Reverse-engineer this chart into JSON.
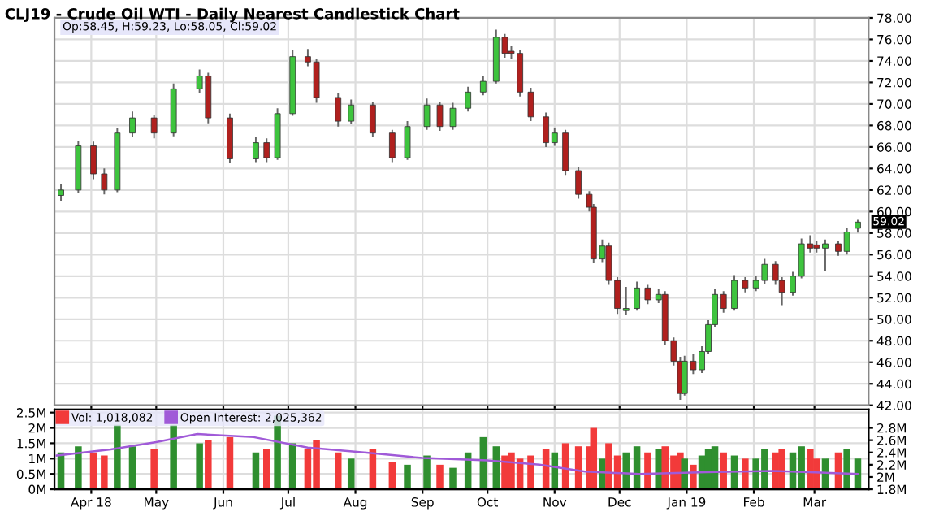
{
  "chart_data": [
    {
      "type": "candlestick",
      "title": "CLJ19 - Crude Oil WTI - Daily Nearest Candlestick Chart",
      "x": [
        "2018-03-18",
        "2018-03-26",
        "2018-04-02",
        "2018-04-07",
        "2018-04-13",
        "2018-04-20",
        "2018-04-30",
        "2018-05-09",
        "2018-05-21",
        "2018-05-25",
        "2018-06-04",
        "2018-06-16",
        "2018-06-21",
        "2018-06-26",
        "2018-07-03",
        "2018-07-10",
        "2018-07-14",
        "2018-07-24",
        "2018-07-30",
        "2018-08-09",
        "2018-08-18",
        "2018-08-25",
        "2018-09-03",
        "2018-09-09",
        "2018-09-15",
        "2018-09-22",
        "2018-09-29",
        "2018-10-05",
        "2018-10-09",
        "2018-10-12",
        "2018-10-16",
        "2018-10-21",
        "2018-10-28",
        "2018-11-01",
        "2018-11-06",
        "2018-11-12",
        "2018-11-17",
        "2018-11-19",
        "2018-11-23",
        "2018-11-26",
        "2018-11-30",
        "2018-12-04",
        "2018-12-09",
        "2018-12-14",
        "2018-12-19",
        "2018-12-22",
        "2018-12-26",
        "2018-12-29",
        "2018-12-31",
        "2019-01-04",
        "2019-01-08",
        "2019-01-11",
        "2019-01-14",
        "2019-01-18",
        "2019-01-23",
        "2019-01-28",
        "2019-02-02",
        "2019-02-06",
        "2019-02-11",
        "2019-02-14",
        "2019-02-19",
        "2019-02-23",
        "2019-02-27",
        "2019-03-02",
        "2019-03-06",
        "2019-03-12",
        "2019-03-16",
        "2019-03-21"
      ],
      "ohlc": [
        [
          61.5,
          62.6,
          61.0,
          62.0
        ],
        [
          62.0,
          66.6,
          61.7,
          66.1
        ],
        [
          66.1,
          66.5,
          63.0,
          63.5
        ],
        [
          63.5,
          64.0,
          61.6,
          62.0
        ],
        [
          62.0,
          67.8,
          61.8,
          67.3
        ],
        [
          67.3,
          69.3,
          66.9,
          68.7
        ],
        [
          68.7,
          69.0,
          66.8,
          67.3
        ],
        [
          67.3,
          71.9,
          67.0,
          71.4
        ],
        [
          71.4,
          73.2,
          71.0,
          72.6
        ],
        [
          72.6,
          72.9,
          68.2,
          68.7
        ],
        [
          68.7,
          69.1,
          64.5,
          64.9
        ],
        [
          64.9,
          66.9,
          64.6,
          66.4
        ],
        [
          66.4,
          66.8,
          64.6,
          65.0
        ],
        [
          65.0,
          69.6,
          64.8,
          69.1
        ],
        [
          69.1,
          75.0,
          68.9,
          74.4
        ],
        [
          74.4,
          75.1,
          73.5,
          73.9
        ],
        [
          73.9,
          74.2,
          70.1,
          70.6
        ],
        [
          70.6,
          71.0,
          67.9,
          68.4
        ],
        [
          68.4,
          70.4,
          68.1,
          69.9
        ],
        [
          69.9,
          70.2,
          66.9,
          67.3
        ],
        [
          67.3,
          67.6,
          64.6,
          65.0
        ],
        [
          65.0,
          68.4,
          64.8,
          67.9
        ],
        [
          67.9,
          70.5,
          67.6,
          69.9
        ],
        [
          69.9,
          70.2,
          67.5,
          67.9
        ],
        [
          67.9,
          70.1,
          67.6,
          69.6
        ],
        [
          69.6,
          71.6,
          69.3,
          71.1
        ],
        [
          71.1,
          72.6,
          70.8,
          72.1
        ],
        [
          72.1,
          76.9,
          71.9,
          76.2
        ],
        [
          76.2,
          76.5,
          74.3,
          74.7
        ],
        [
          74.9,
          75.4,
          74.2,
          74.7
        ],
        [
          74.7,
          75.0,
          70.7,
          71.1
        ],
        [
          71.1,
          71.5,
          68.4,
          68.8
        ],
        [
          68.8,
          69.2,
          66.0,
          66.4
        ],
        [
          66.4,
          67.8,
          66.1,
          67.3
        ],
        [
          67.3,
          67.6,
          63.4,
          63.8
        ],
        [
          63.8,
          64.1,
          61.2,
          61.6
        ],
        [
          61.6,
          61.9,
          60.0,
          60.4
        ],
        [
          60.4,
          60.7,
          55.2,
          55.6
        ],
        [
          55.6,
          57.4,
          55.3,
          56.8
        ],
        [
          56.8,
          57.1,
          53.2,
          53.6
        ],
        [
          53.6,
          53.9,
          50.5,
          51.0
        ],
        [
          50.8,
          53.0,
          50.4,
          51.0
        ],
        [
          51.0,
          53.5,
          50.8,
          52.9
        ],
        [
          52.9,
          53.2,
          51.4,
          51.8
        ],
        [
          51.8,
          52.8,
          51.5,
          52.3
        ],
        [
          52.3,
          52.6,
          47.6,
          48.0
        ],
        [
          48.0,
          48.3,
          45.7,
          46.1
        ],
        [
          46.1,
          46.5,
          42.5,
          43.1
        ],
        [
          43.1,
          46.6,
          42.9,
          46.1
        ],
        [
          46.1,
          46.8,
          44.9,
          45.3
        ],
        [
          45.3,
          47.5,
          45.0,
          47.0
        ],
        [
          47.0,
          49.9,
          46.8,
          49.5
        ],
        [
          49.5,
          52.8,
          49.3,
          52.3
        ],
        [
          52.3,
          52.6,
          50.6,
          51.0
        ],
        [
          51.0,
          54.1,
          50.8,
          53.6
        ],
        [
          53.6,
          53.9,
          52.5,
          52.9
        ],
        [
          52.9,
          54.0,
          52.6,
          53.6
        ],
        [
          53.6,
          55.6,
          53.3,
          55.1
        ],
        [
          55.1,
          55.4,
          53.2,
          53.6
        ],
        [
          53.6,
          53.9,
          51.3,
          52.5
        ],
        [
          52.5,
          54.4,
          52.2,
          54.0
        ],
        [
          54.0,
          57.5,
          53.8,
          57.0
        ],
        [
          57.0,
          57.8,
          56.2,
          56.6
        ],
        [
          56.9,
          57.3,
          56.2,
          56.6
        ],
        [
          56.6,
          57.4,
          54.5,
          57.0
        ],
        [
          57.0,
          57.3,
          55.9,
          56.3
        ],
        [
          56.3,
          58.5,
          56.0,
          58.1
        ],
        [
          58.45,
          59.23,
          58.05,
          59.02
        ]
      ],
      "colors": [
        "#3ec43e",
        "#3ec43e",
        "#b0201e",
        "#b0201e",
        "#3ec43e",
        "#3ec43e",
        "#b0201e",
        "#3ec43e",
        "#3ec43e",
        "#b0201e",
        "#b0201e",
        "#3ec43e",
        "#b0201e",
        "#3ec43e",
        "#3ec43e",
        "#b0201e",
        "#b0201e",
        "#b0201e",
        "#3ec43e",
        "#b0201e",
        "#b0201e",
        "#3ec43e",
        "#3ec43e",
        "#b0201e",
        "#3ec43e",
        "#3ec43e",
        "#3ec43e",
        "#3ec43e",
        "#b0201e",
        "#b0201e",
        "#b0201e",
        "#b0201e",
        "#b0201e",
        "#3ec43e",
        "#b0201e",
        "#b0201e",
        "#b0201e",
        "#b0201e",
        "#3ec43e",
        "#b0201e",
        "#b0201e",
        "#3ec43e",
        "#3ec43e",
        "#b0201e",
        "#3ec43e",
        "#b0201e",
        "#b0201e",
        "#b0201e",
        "#3ec43e",
        "#b0201e",
        "#3ec43e",
        "#3ec43e",
        "#3ec43e",
        "#b0201e",
        "#3ec43e",
        "#b0201e",
        "#3ec43e",
        "#3ec43e",
        "#b0201e",
        "#b0201e",
        "#3ec43e",
        "#3ec43e",
        "#b0201e",
        "#b0201e",
        "#3ec43e",
        "#b0201e",
        "#3ec43e",
        "#3ec43e"
      ],
      "xlim": [
        "2018-03-15",
        "2019-03-26"
      ],
      "xticks": [
        {
          "value": "2018-04-01",
          "label": null
        },
        {
          "value": "2018-05-01",
          "label": null
        },
        {
          "value": "2018-06-01",
          "label": null
        },
        {
          "value": "2018-07-01",
          "label": null
        },
        {
          "value": "2018-08-01",
          "label": null
        },
        {
          "value": "2018-09-01",
          "label": null
        },
        {
          "value": "2018-10-01",
          "label": null
        },
        {
          "value": "2018-11-01",
          "label": null
        },
        {
          "value": "2018-12-01",
          "label": null
        },
        {
          "value": "2019-01-01",
          "label": null
        },
        {
          "value": "2019-02-01",
          "label": null
        },
        {
          "value": "2019-03-01",
          "label": null
        }
      ],
      "ylim": [
        42,
        78
      ],
      "yticks": [
        {
          "value": 42,
          "label": "42.00"
        },
        {
          "value": 44,
          "label": "44.00"
        },
        {
          "value": 46,
          "label": "46.00"
        },
        {
          "value": 48,
          "label": "48.00"
        },
        {
          "value": 50,
          "label": "50.00"
        },
        {
          "value": 52,
          "label": "52.00"
        },
        {
          "value": 54,
          "label": "54.00"
        },
        {
          "value": 56,
          "label": "56.00"
        },
        {
          "value": 58,
          "label": "58.00"
        },
        {
          "value": 60,
          "label": "60.00"
        },
        {
          "value": 62,
          "label": "62.00"
        },
        {
          "value": 64,
          "label": "64.00"
        },
        {
          "value": 66,
          "label": "66.00"
        },
        {
          "value": 68,
          "label": "68.00"
        },
        {
          "value": 70,
          "label": "70.00"
        },
        {
          "value": 72,
          "label": "72.00"
        },
        {
          "value": 74,
          "label": "74.00"
        },
        {
          "value": 76,
          "label": "76.00"
        },
        {
          "value": 78,
          "label": "78.00"
        }
      ],
      "tick_labels": "y",
      "grid": true,
      "annotations": [
        "Op:58.45, H:59.23, Lo:58.05, Cl:59.02",
        {
          "text": "59.02",
          "x": "2019-03-21",
          "y": 59.02
        }
      ]
    },
    {
      "type": "bar",
      "x": [
        "2018-03-18",
        "2018-03-26",
        "2018-04-02",
        "2018-04-07",
        "2018-04-13",
        "2018-04-20",
        "2018-04-30",
        "2018-05-09",
        "2018-05-21",
        "2018-05-25",
        "2018-06-04",
        "2018-06-16",
        "2018-06-21",
        "2018-06-26",
        "2018-07-03",
        "2018-07-10",
        "2018-07-14",
        "2018-07-24",
        "2018-07-30",
        "2018-08-09",
        "2018-08-18",
        "2018-08-25",
        "2018-09-03",
        "2018-09-09",
        "2018-09-15",
        "2018-09-22",
        "2018-09-29",
        "2018-10-05",
        "2018-10-09",
        "2018-10-12",
        "2018-10-16",
        "2018-10-21",
        "2018-10-28",
        "2018-11-01",
        "2018-11-06",
        "2018-11-12",
        "2018-11-17",
        "2018-11-19",
        "2018-11-23",
        "2018-11-26",
        "2018-11-30",
        "2018-12-04",
        "2018-12-09",
        "2018-12-14",
        "2018-12-19",
        "2018-12-22",
        "2018-12-26",
        "2018-12-29",
        "2018-12-31",
        "2019-01-04",
        "2019-01-08",
        "2019-01-11",
        "2019-01-14",
        "2019-01-18",
        "2019-01-23",
        "2019-01-28",
        "2019-02-02",
        "2019-02-06",
        "2019-02-11",
        "2019-02-14",
        "2019-02-19",
        "2019-02-23",
        "2019-02-27",
        "2019-03-02",
        "2019-03-06",
        "2019-03-12",
        "2019-03-16",
        "2019-03-21"
      ],
      "series": [
        {
          "name": "Vol: 1,018,082",
          "color": "#f23a3a",
          "values": [
            1.2,
            1.4,
            1.2,
            1.1,
            2.1,
            1.4,
            1.3,
            2.1,
            1.5,
            1.6,
            1.7,
            1.2,
            1.3,
            2.4,
            1.5,
            1.3,
            1.6,
            1.2,
            1.0,
            1.3,
            0.9,
            0.8,
            1.1,
            0.8,
            0.7,
            1.2,
            1.7,
            1.4,
            1.1,
            1.2,
            1.0,
            1.1,
            1.3,
            1.2,
            1.5,
            1.4,
            1.4,
            2.0,
            1.0,
            1.5,
            1.1,
            1.2,
            1.4,
            1.2,
            1.3,
            1.4,
            1.1,
            1.2,
            1.0,
            0.8,
            1.1,
            1.3,
            1.4,
            1.2,
            1.1,
            1.0,
            1.0,
            1.3,
            1.2,
            1.3,
            1.2,
            1.4,
            1.3,
            1.0,
            1.0,
            1.2,
            1.3,
            1.0
          ],
          "colors": [
            "#2f8f2f",
            "#2f8f2f",
            "#f23a3a",
            "#f23a3a",
            "#2f8f2f",
            "#2f8f2f",
            "#f23a3a",
            "#2f8f2f",
            "#2f8f2f",
            "#f23a3a",
            "#f23a3a",
            "#2f8f2f",
            "#f23a3a",
            "#2f8f2f",
            "#2f8f2f",
            "#f23a3a",
            "#f23a3a",
            "#f23a3a",
            "#2f8f2f",
            "#f23a3a",
            "#f23a3a",
            "#2f8f2f",
            "#2f8f2f",
            "#f23a3a",
            "#2f8f2f",
            "#2f8f2f",
            "#2f8f2f",
            "#2f8f2f",
            "#f23a3a",
            "#f23a3a",
            "#f23a3a",
            "#f23a3a",
            "#f23a3a",
            "#2f8f2f",
            "#f23a3a",
            "#f23a3a",
            "#f23a3a",
            "#f23a3a",
            "#2f8f2f",
            "#f23a3a",
            "#f23a3a",
            "#2f8f2f",
            "#2f8f2f",
            "#f23a3a",
            "#2f8f2f",
            "#f23a3a",
            "#f23a3a",
            "#f23a3a",
            "#2f8f2f",
            "#f23a3a",
            "#2f8f2f",
            "#2f8f2f",
            "#2f8f2f",
            "#f23a3a",
            "#2f8f2f",
            "#f23a3a",
            "#2f8f2f",
            "#2f8f2f",
            "#f23a3a",
            "#f23a3a",
            "#2f8f2f",
            "#2f8f2f",
            "#f23a3a",
            "#f23a3a",
            "#2f8f2f",
            "#f23a3a",
            "#2f8f2f",
            "#2f8f2f"
          ]
        },
        {
          "name": "Open Interest: 2,025,362",
          "type": "line",
          "axis": "y2",
          "color": "#a05ad8",
          "x": [
            "2018-03-16",
            "2018-04-10",
            "2018-05-01",
            "2018-05-20",
            "2018-06-15",
            "2018-07-10",
            "2018-08-05",
            "2018-09-01",
            "2018-10-01",
            "2018-10-25",
            "2018-11-15",
            "2018-12-10",
            "2019-01-10",
            "2019-02-10",
            "2019-03-21"
          ],
          "values": [
            2.35,
            2.45,
            2.57,
            2.7,
            2.65,
            2.48,
            2.4,
            2.31,
            2.27,
            2.2,
            2.09,
            2.05,
            2.08,
            2.1,
            2.05
          ]
        }
      ],
      "xlim": [
        "2018-03-15",
        "2019-03-26"
      ],
      "xticks": [
        {
          "value": "2018-04-01",
          "label": "Apr 18"
        },
        {
          "value": "2018-05-01",
          "label": "May"
        },
        {
          "value": "2018-06-01",
          "label": "Jun"
        },
        {
          "value": "2018-07-01",
          "label": "Jul"
        },
        {
          "value": "2018-08-01",
          "label": "Aug"
        },
        {
          "value": "2018-09-01",
          "label": "Sep"
        },
        {
          "value": "2018-10-01",
          "label": "Oct"
        },
        {
          "value": "2018-11-01",
          "label": "Nov"
        },
        {
          "value": "2018-12-01",
          "label": "Dec"
        },
        {
          "value": "2019-01-01",
          "label": "Jan 19"
        },
        {
          "value": "2019-02-01",
          "label": "Feb"
        },
        {
          "value": "2019-03-01",
          "label": "Mar"
        }
      ],
      "ylim": [
        0,
        2.6
      ],
      "yticks": [
        {
          "value": 0,
          "label": "0M"
        },
        {
          "value": 0.5,
          "label": "0.5M"
        },
        {
          "value": 1,
          "label": "1M"
        },
        {
          "value": 1.5,
          "label": "1.5M"
        },
        {
          "value": 2,
          "label": "2M"
        },
        {
          "value": 2.5,
          "label": "2.5M"
        }
      ],
      "y2lim": [
        1.8,
        3.1
      ],
      "y2ticks": [
        {
          "value": 1.8,
          "label": "1.8M"
        },
        {
          "value": 2.0,
          "label": "2M"
        },
        {
          "value": 2.2,
          "label": "2.2M"
        },
        {
          "value": 2.4,
          "label": "2.4M"
        },
        {
          "value": 2.6,
          "label": "2.6M"
        },
        {
          "value": 2.8,
          "label": "2.8M"
        }
      ],
      "grid": true,
      "legend": "top left"
    }
  ]
}
